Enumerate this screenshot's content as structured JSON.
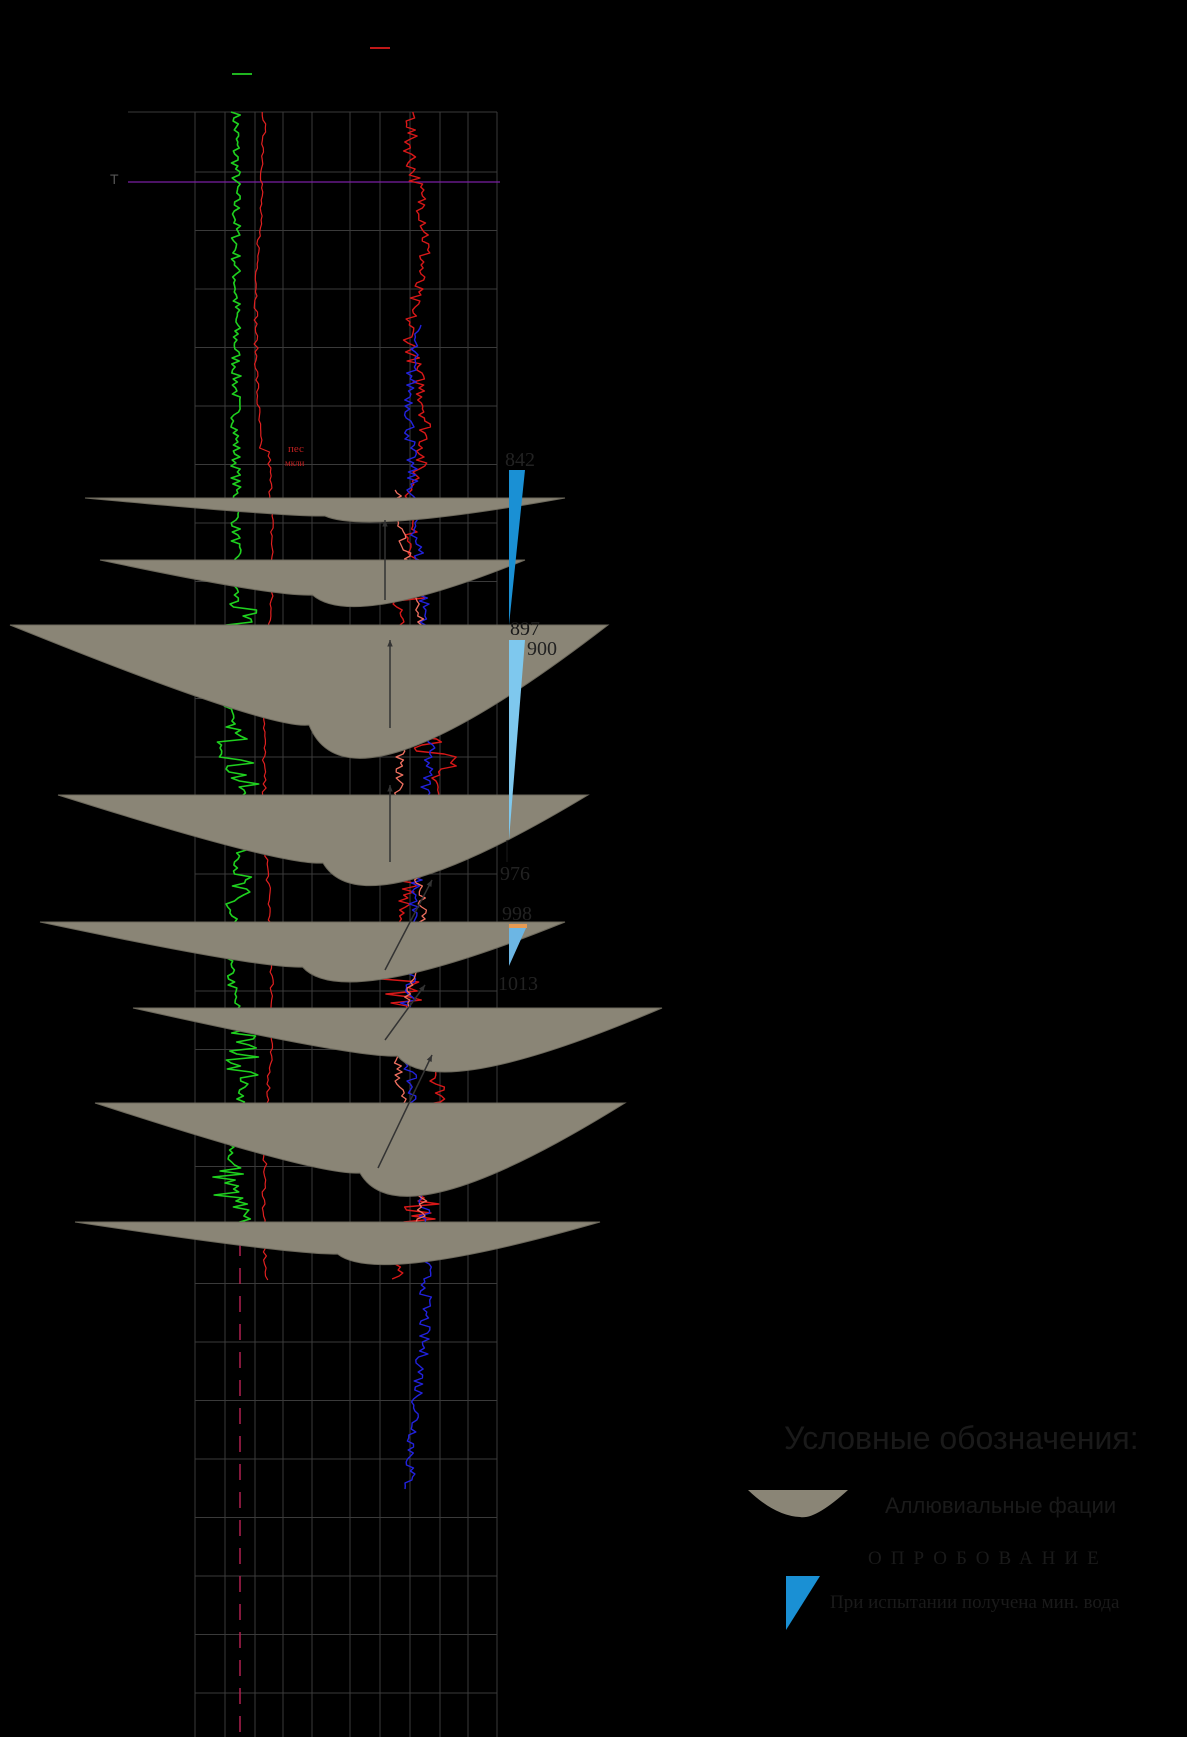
{
  "marker": {
    "label": "T",
    "color": "#7a1fa2"
  },
  "annotation": {
    "line1": "пес",
    "line2": "мкли"
  },
  "tests": [
    {
      "top_depth": "842",
      "bottom_depth": "897",
      "color": "#1a90d4"
    },
    {
      "top_depth": "900",
      "bottom_depth": "976",
      "color": "#7ec8ee"
    },
    {
      "top_depth": "998",
      "bottom_depth": "1013",
      "color": "#6cb6e4",
      "accent": "#e79a52"
    }
  ],
  "legend": {
    "title": "Условные обозначения:",
    "facies_label": "Аллювиальные фации",
    "sampling_title": "ОПРОБОВАНИЕ",
    "water_label": "При испытании получена мин. вода",
    "facies_color": "#8a8576",
    "water_color": "#1a90d4"
  },
  "curve_colors": {
    "left_green": "#1fd11f",
    "left_red": "#e02020",
    "right_red": "#d81818",
    "right_blue": "#2222dd",
    "right_salmon": "#f07060"
  }
}
